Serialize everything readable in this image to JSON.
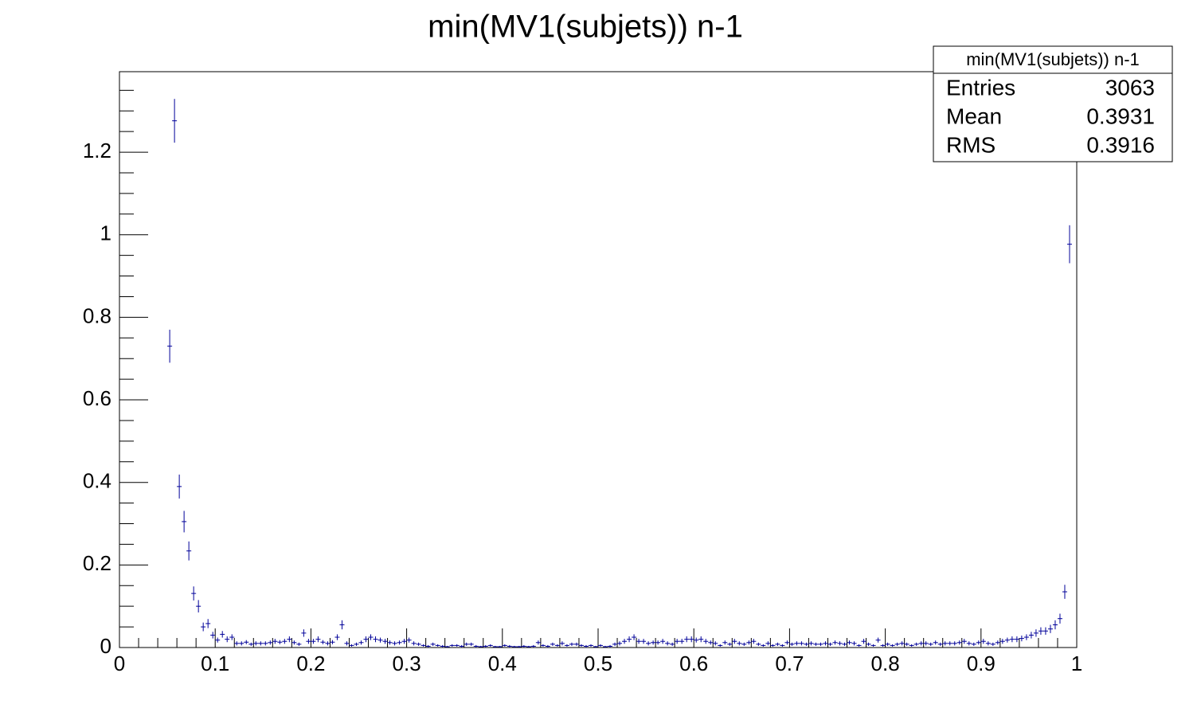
{
  "chart_data": {
    "type": "histogram",
    "title": "min(MV1(subjets)) n-1",
    "color": "#000099",
    "bins": [
      0,
      0.005,
      0.01,
      0.015,
      0.02,
      0.025,
      0.03,
      0.035,
      0.04,
      0.045,
      0.05,
      0.055,
      0.06,
      0.065,
      0.07,
      0.075,
      0.08,
      0.085,
      0.09,
      0.095,
      0.1,
      0.105,
      0.11,
      0.115,
      0.12,
      0.125,
      0.13,
      0.135,
      0.14,
      0.145,
      0.15,
      0.155,
      0.16,
      0.165,
      0.17,
      0.175,
      0.18,
      0.185,
      0.19,
      0.195,
      0.2,
      0.205,
      0.21,
      0.215,
      0.22,
      0.225,
      0.23,
      0.235,
      0.24,
      0.245,
      0.25,
      0.255,
      0.26,
      0.265,
      0.27,
      0.275,
      0.28,
      0.285,
      0.29,
      0.295,
      0.3,
      0.305,
      0.31,
      0.315,
      0.32,
      0.325,
      0.33,
      0.335,
      0.34,
      0.345,
      0.35,
      0.355,
      0.36,
      0.365,
      0.37,
      0.375,
      0.38,
      0.385,
      0.39,
      0.395,
      0.4,
      0.405,
      0.41,
      0.415,
      0.42,
      0.425,
      0.43,
      0.435,
      0.44,
      0.445,
      0.45,
      0.455,
      0.46,
      0.465,
      0.47,
      0.475,
      0.48,
      0.485,
      0.49,
      0.495,
      0.5,
      0.505,
      0.51,
      0.515,
      0.52,
      0.525,
      0.53,
      0.535,
      0.54,
      0.545,
      0.55,
      0.555,
      0.56,
      0.565,
      0.57,
      0.575,
      0.58,
      0.585,
      0.59,
      0.595,
      0.6,
      0.605,
      0.61,
      0.615,
      0.62,
      0.625,
      0.63,
      0.635,
      0.64,
      0.645,
      0.65,
      0.655,
      0.66,
      0.665,
      0.67,
      0.675,
      0.68,
      0.685,
      0.69,
      0.695,
      0.7,
      0.705,
      0.71,
      0.715,
      0.72,
      0.725,
      0.73,
      0.735,
      0.74,
      0.745,
      0.75,
      0.755,
      0.76,
      0.765,
      0.77,
      0.775,
      0.78,
      0.785,
      0.79,
      0.795,
      0.8,
      0.805,
      0.81,
      0.815,
      0.82,
      0.825,
      0.83,
      0.835,
      0.84,
      0.845,
      0.85,
      0.855,
      0.86,
      0.865,
      0.87,
      0.875,
      0.88,
      0.885,
      0.89,
      0.895,
      0.9,
      0.905,
      0.91,
      0.915,
      0.92,
      0.925,
      0.93,
      0.935,
      0.94,
      0.945,
      0.95,
      0.955,
      0.96,
      0.965,
      0.97,
      0.975,
      0.98,
      0.985,
      0.99,
      0.995,
      1
    ],
    "values": [
      null,
      null,
      null,
      null,
      null,
      null,
      null,
      null,
      null,
      null,
      0.73,
      1.276,
      0.39,
      0.305,
      0.234,
      0.131,
      0.1,
      0.05,
      0.058,
      0.03,
      0.018,
      0.032,
      0.02,
      0.025,
      0.01,
      0.01,
      0.013,
      0.008,
      0.01,
      0.01,
      0.01,
      0.012,
      0.015,
      0.013,
      0.015,
      0.02,
      0.012,
      0.008,
      0.035,
      0.015,
      0.015,
      0.02,
      0.013,
      0.01,
      0.013,
      0.025,
      0.055,
      0.01,
      0.005,
      0.008,
      0.012,
      0.02,
      0.025,
      0.02,
      0.018,
      0.015,
      0.012,
      0.01,
      0.012,
      0.015,
      0.018,
      0.01,
      0.008,
      0.005,
      0.003,
      0.008,
      0.005,
      0.003,
      0.002,
      0.005,
      0.005,
      0.003,
      0.008,
      0.008,
      0.003,
      0.002,
      0.003,
      0.005,
      0.002,
      0.002,
      0.005,
      0.003,
      0.002,
      0.002,
      0.003,
      0.002,
      0.003,
      0.012,
      0.005,
      0.003,
      0.008,
      0.005,
      0.01,
      0.005,
      0.008,
      0.008,
      0.005,
      0.003,
      0.005,
      0.002,
      0.005,
      0.002,
      0.003,
      0.008,
      0.01,
      0.015,
      0.02,
      0.025,
      0.015,
      0.015,
      0.01,
      0.012,
      0.012,
      0.015,
      0.01,
      0.008,
      0.015,
      0.015,
      0.02,
      0.02,
      0.018,
      0.02,
      0.015,
      0.012,
      0.01,
      0.005,
      0.012,
      0.008,
      0.015,
      0.01,
      0.008,
      0.012,
      0.015,
      0.008,
      0.005,
      0.01,
      0.005,
      0.008,
      0.005,
      0.012,
      0.008,
      0.01,
      0.01,
      0.008,
      0.01,
      0.008,
      0.008,
      0.01,
      0.008,
      0.012,
      0.01,
      0.008,
      0.012,
      0.01,
      0.005,
      0.015,
      0.008,
      0.005,
      0.018,
      0.005,
      0.008,
      0.005,
      0.008,
      0.01,
      0.008,
      0.005,
      0.008,
      0.01,
      0.01,
      0.008,
      0.012,
      0.008,
      0.01,
      0.01,
      0.01,
      0.012,
      0.015,
      0.01,
      0.008,
      0.012,
      0.015,
      0.01,
      0.008,
      0.012,
      0.015,
      0.018,
      0.02,
      0.02,
      0.022,
      0.025,
      0.03,
      0.035,
      0.04,
      0.04,
      0.045,
      0.055,
      0.07,
      0.135,
      0.977,
      null
    ],
    "errors": [
      null,
      null,
      null,
      null,
      null,
      null,
      null,
      null,
      null,
      null,
      0.04,
      0.053,
      0.029,
      0.026,
      0.023,
      0.017,
      0.015,
      0.0105,
      0.011,
      0.008,
      0.006,
      0.008,
      0.007,
      0.007,
      0.005,
      0.005,
      0.005,
      0.004,
      0.005,
      0.005,
      0.005,
      0.005,
      0.006,
      0.005,
      0.006,
      0.007,
      0.005,
      0.004,
      0.009,
      0.006,
      0.006,
      0.007,
      0.005,
      0.005,
      0.005,
      0.007,
      0.011,
      0.005,
      0.003,
      0.004,
      0.005,
      0.007,
      0.007,
      0.007,
      0.006,
      0.006,
      0.005,
      0.005,
      0.005,
      0.006,
      0.006,
      0.005,
      0.004,
      0.003,
      0.003,
      0.004,
      0.003,
      0.003,
      0.002,
      0.003,
      0.003,
      0.003,
      0.004,
      0.004,
      0.003,
      0.002,
      0.003,
      0.003,
      0.002,
      0.002,
      0.003,
      0.003,
      0.002,
      0.002,
      0.003,
      0.002,
      0.003,
      0.005,
      0.003,
      0.003,
      0.004,
      0.003,
      0.005,
      0.003,
      0.004,
      0.004,
      0.003,
      0.003,
      0.003,
      0.002,
      0.003,
      0.002,
      0.003,
      0.004,
      0.005,
      0.006,
      0.007,
      0.007,
      0.006,
      0.006,
      0.005,
      0.005,
      0.005,
      0.006,
      0.005,
      0.004,
      0.006,
      0.006,
      0.007,
      0.007,
      0.006,
      0.007,
      0.006,
      0.005,
      0.005,
      0.003,
      0.005,
      0.004,
      0.006,
      0.005,
      0.004,
      0.005,
      0.006,
      0.004,
      0.003,
      0.005,
      0.003,
      0.004,
      0.003,
      0.005,
      0.004,
      0.005,
      0.005,
      0.004,
      0.005,
      0.004,
      0.004,
      0.005,
      0.004,
      0.005,
      0.005,
      0.004,
      0.005,
      0.005,
      0.003,
      0.006,
      0.004,
      0.003,
      0.006,
      0.003,
      0.004,
      0.003,
      0.004,
      0.005,
      0.004,
      0.003,
      0.004,
      0.005,
      0.005,
      0.004,
      0.005,
      0.004,
      0.005,
      0.005,
      0.005,
      0.005,
      0.006,
      0.005,
      0.004,
      0.005,
      0.006,
      0.005,
      0.004,
      0.005,
      0.006,
      0.006,
      0.007,
      0.007,
      0.007,
      0.007,
      0.008,
      0.009,
      0.009,
      0.009,
      0.01,
      0.011,
      0.012,
      0.017,
      0.046,
      null
    ],
    "xlim": [
      0,
      1
    ],
    "xticks": [
      0,
      0.1,
      0.2,
      0.3,
      0.4,
      0.5,
      0.6,
      0.7,
      0.8,
      0.9,
      1
    ],
    "xminorticks": [
      0.02,
      0.04,
      0.06,
      0.08,
      0.12,
      0.14,
      0.16,
      0.18,
      0.22,
      0.24,
      0.26,
      0.28,
      0.32,
      0.34,
      0.36,
      0.38,
      0.42,
      0.44,
      0.46,
      0.48,
      0.52,
      0.54,
      0.56,
      0.58,
      0.62,
      0.64,
      0.66,
      0.68,
      0.72,
      0.74,
      0.76,
      0.78,
      0.82,
      0.84,
      0.86,
      0.88,
      0.92,
      0.94,
      0.96,
      0.98
    ],
    "ylim": [
      0,
      1.395
    ],
    "yticks": [
      0,
      0.2,
      0.4,
      0.6,
      0.8,
      1,
      1.2
    ],
    "yminorticks": [
      0.05,
      0.1,
      0.15,
      0.25,
      0.3,
      0.35,
      0.45,
      0.5,
      0.55,
      0.65,
      0.7,
      0.75,
      0.85,
      0.9,
      0.95,
      1.05,
      1.1,
      1.15,
      1.25,
      1.3,
      1.35
    ],
    "stats": {
      "title": "min(MV1(subjets)) n-1",
      "rows": [
        {
          "label": "Entries",
          "value": 3063
        },
        {
          "label": "Mean",
          "value": 0.3931
        },
        {
          "label": "RMS",
          "value": 0.3916
        }
      ]
    }
  }
}
